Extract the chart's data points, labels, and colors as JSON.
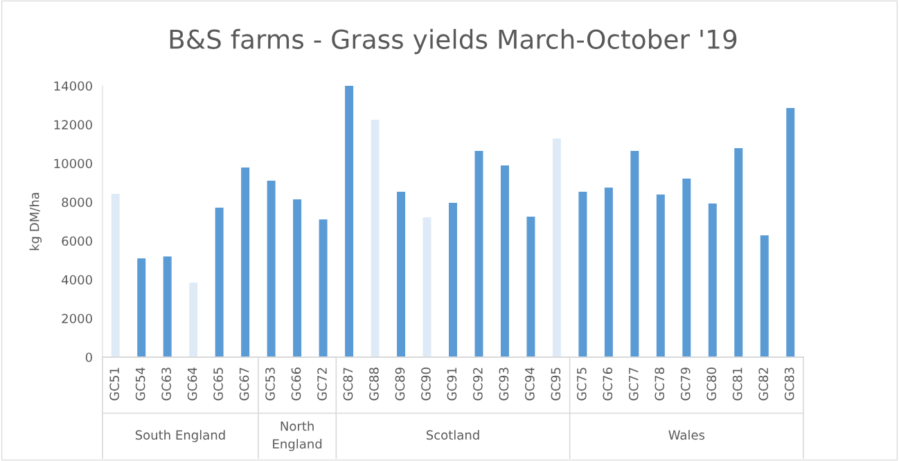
{
  "chart_data": {
    "type": "bar",
    "title": "B&S farms - Grass yields March-October '19",
    "ylabel": "kg DM/ha",
    "categories": [
      "GC51",
      "GC54",
      "GC63",
      "GC64",
      "GC65",
      "GC67",
      "GC53",
      "GC66",
      "GC72",
      "GC87",
      "GC88",
      "GC89",
      "GC90",
      "GC91",
      "GC92",
      "GC93",
      "GC94",
      "GC95",
      "GC75",
      "GC76",
      "GC77",
      "GC78",
      "GC79",
      "GC80",
      "GC81",
      "GC82",
      "GC83"
    ],
    "values": [
      8430,
      5100,
      5200,
      3850,
      7710,
      9790,
      9110,
      8140,
      7110,
      14000,
      12250,
      8540,
      7210,
      7960,
      10640,
      9890,
      7250,
      11290,
      8540,
      8750,
      10640,
      8390,
      9210,
      7930,
      10790,
      6290,
      12860
    ],
    "colors": [
      "#deebf7",
      "#5b9bd5",
      "#5b9bd5",
      "#deebf7",
      "#5b9bd5",
      "#5b9bd5",
      "#5b9bd5",
      "#5b9bd5",
      "#5b9bd5",
      "#5b9bd5",
      "#deebf7",
      "#5b9bd5",
      "#deebf7",
      "#5b9bd5",
      "#5b9bd5",
      "#5b9bd5",
      "#5b9bd5",
      "#deebf7",
      "#5b9bd5",
      "#5b9bd5",
      "#5b9bd5",
      "#5b9bd5",
      "#5b9bd5",
      "#5b9bd5",
      "#5b9bd5",
      "#5b9bd5",
      "#5b9bd5"
    ],
    "ylim": [
      0,
      14000
    ],
    "yticks": [
      0,
      2000,
      4000,
      6000,
      8000,
      10000,
      12000,
      14000
    ],
    "grid": false,
    "legend": false,
    "annotations": [
      "South England",
      "North\nEngland",
      "Scotland",
      "Wales"
    ]
  }
}
